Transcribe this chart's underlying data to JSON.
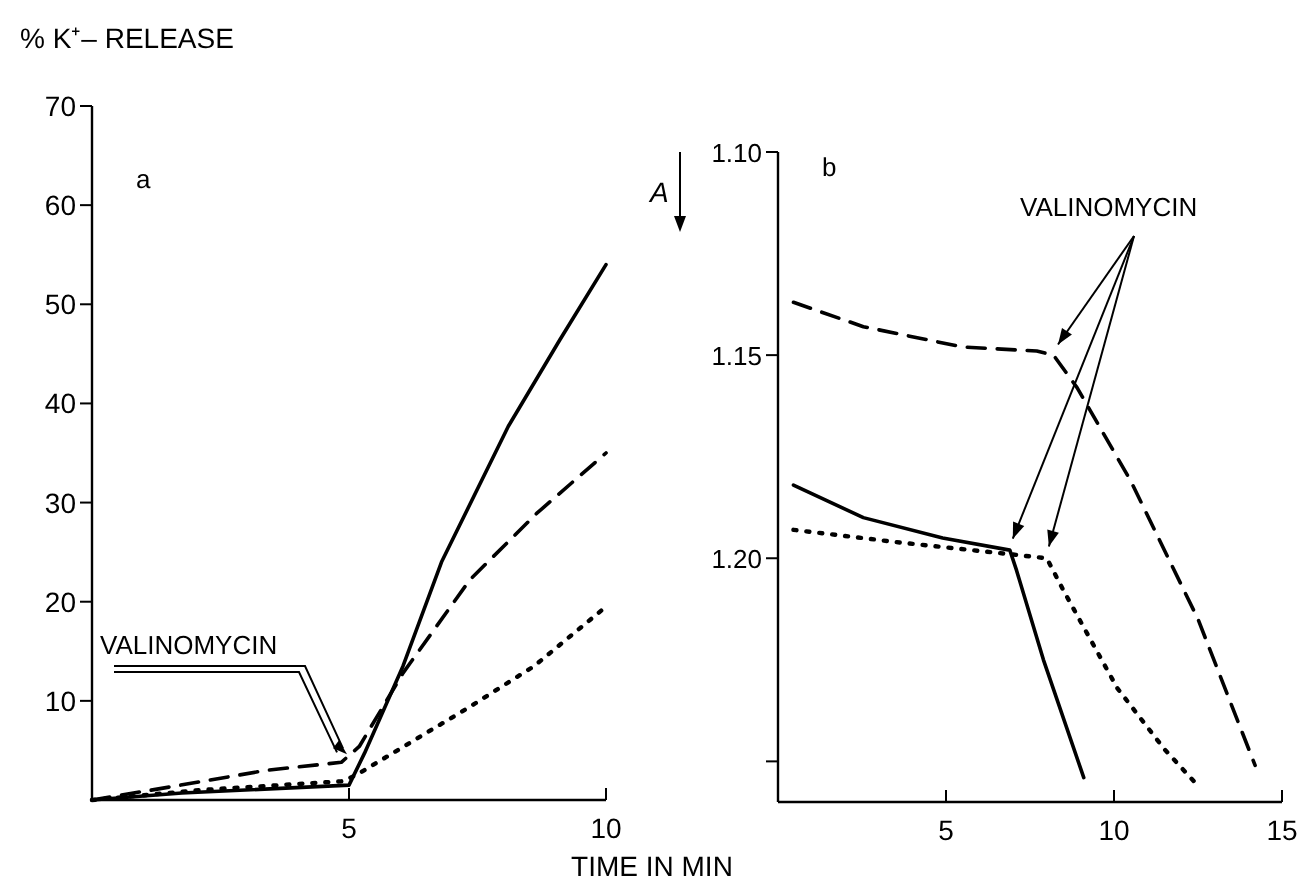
{
  "chart_data": [
    {
      "type": "line",
      "ylabel": "% K⁺– RELEASE",
      "xlabel": "TIME IN MIN",
      "xlim": [
        0,
        10
      ],
      "xticks": [
        5,
        10
      ],
      "ylim": [
        0,
        70
      ],
      "yticks": [
        10,
        20,
        30,
        40,
        50,
        60,
        70
      ],
      "annotations": [
        "a",
        {
          "text": "VALINOMYCIN",
          "x": 5,
          "y": 4
        }
      ],
      "series": [
        {
          "color": "#000000",
          "line_style": "solid",
          "x": [
            0,
            1.75,
            5,
            5.3,
            6.05,
            6.8,
            8.1,
            9.1,
            10
          ],
          "values": [
            0,
            0.7,
            1.5,
            4.7,
            13.5,
            24,
            37.7,
            46.4,
            54
          ]
        },
        {
          "color": "#000000",
          "line_style": "dashed",
          "x": [
            0,
            1.5,
            3.4,
            4.85,
            5.2,
            6.05,
            7.35,
            8.65,
            10
          ],
          "values": [
            0,
            1.3,
            3,
            3.8,
            5.4,
            12.8,
            22.2,
            28.9,
            35
          ]
        },
        {
          "color": "#000000",
          "line_style": "dotted",
          "x": [
            0,
            2.1,
            4.9,
            5.2,
            7.35,
            8.6,
            10
          ],
          "values": [
            0,
            1,
            1.9,
            2.7,
            9.4,
            13.5,
            19.5
          ]
        }
      ]
    },
    {
      "type": "line",
      "ylabel": "A",
      "xlim": [
        0,
        15
      ],
      "xticks": [
        5,
        10,
        15
      ],
      "ylim": [
        1.26,
        1.1
      ],
      "yticks": [
        {
          "value": 1.1,
          "label": "1.10"
        },
        1.15,
        {
          "value": 1.2,
          "label": "1.20"
        },
        {
          "value": 1.25,
          "label": null
        }
      ],
      "annotations": [
        "b",
        "VALINOMYCIN"
      ],
      "series": [
        {
          "color": "#000000",
          "line_style": "dashed",
          "x": [
            0.46,
            2.54,
            5.5,
            7.7,
            8.2,
            8.9,
            10.5,
            12.5,
            14.2
          ],
          "values": [
            1.137,
            1.143,
            1.148,
            1.149,
            1.15,
            1.158,
            1.181,
            1.215,
            1.251
          ]
        },
        {
          "color": "#000000",
          "line_style": "solid",
          "x": [
            0.46,
            2.54,
            4.9,
            6.9,
            7.1,
            7.9,
            9.1
          ],
          "values": [
            1.182,
            1.19,
            1.195,
            1.198,
            1.203,
            1.225,
            1.254
          ]
        },
        {
          "color": "#000000",
          "line_style": "dotted",
          "x": [
            0.46,
            3.5,
            6.9,
            8,
            8.5,
            10.1,
            11.5,
            12.5
          ],
          "values": [
            1.193,
            1.196,
            1.199,
            1.2,
            1.208,
            1.232,
            1.247,
            1.256
          ]
        }
      ]
    }
  ]
}
